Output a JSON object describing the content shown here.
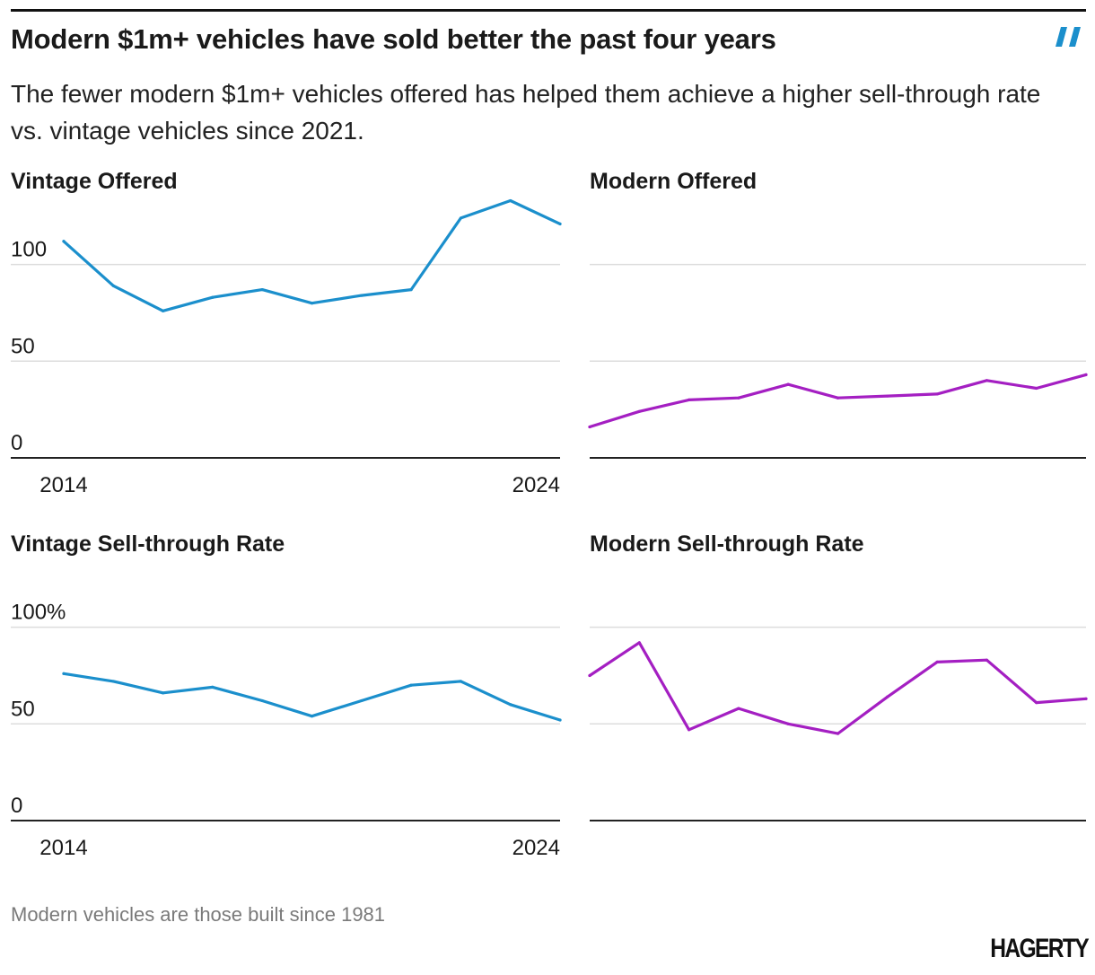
{
  "header": {
    "title": "Modern $1m+ vehicles have sold better the past four years",
    "subtitle": "The fewer modern $1m+ vehicles offered has helped them achieve a higher sell-through rate vs. vintage vehicles since 2021."
  },
  "colors": {
    "vintage": "#1b8fcc",
    "modern": "#a41fc2",
    "grid": "#dddddd",
    "axis": "#222222",
    "logo_mark": "#1b8fcc"
  },
  "logo_mark_icon": "brand-slash-icon",
  "chart_data": [
    {
      "type": "line",
      "title": "Vintage Offered",
      "color_key": "vintage",
      "x": [
        2014,
        2015,
        2016,
        2017,
        2018,
        2019,
        2020,
        2021,
        2022,
        2023,
        2024
      ],
      "values": [
        112,
        89,
        76,
        83,
        87,
        80,
        84,
        87,
        124,
        133,
        121
      ],
      "ylim": [
        0,
        130
      ],
      "yticks": [
        0,
        50,
        100
      ],
      "ytick_labels": [
        "0",
        "50",
        "100"
      ],
      "xtick_labels": [
        "2014",
        "2024"
      ],
      "show_axis_labels": true
    },
    {
      "type": "line",
      "title": "Modern Offered",
      "color_key": "modern",
      "x": [
        2014,
        2015,
        2016,
        2017,
        2018,
        2019,
        2020,
        2021,
        2022,
        2023,
        2024
      ],
      "values": [
        16,
        24,
        30,
        31,
        38,
        31,
        32,
        33,
        40,
        36,
        43
      ],
      "ylim": [
        0,
        130
      ],
      "yticks": [
        0,
        50,
        100
      ],
      "ytick_labels": [],
      "xtick_labels": [],
      "show_axis_labels": false
    },
    {
      "type": "line",
      "title": "Vintage Sell-through Rate",
      "color_key": "vintage",
      "x": [
        2014,
        2015,
        2016,
        2017,
        2018,
        2019,
        2020,
        2021,
        2022,
        2023,
        2024
      ],
      "values": [
        76,
        72,
        66,
        69,
        62,
        54,
        62,
        70,
        72,
        60,
        52
      ],
      "ylim": [
        0,
        130
      ],
      "yticks": [
        0,
        50,
        100
      ],
      "ytick_labels": [
        "0",
        "50",
        "100%"
      ],
      "xtick_labels": [
        "2014",
        "2024"
      ],
      "show_axis_labels": true
    },
    {
      "type": "line",
      "title": "Modern Sell-through Rate",
      "color_key": "modern",
      "x": [
        2014,
        2015,
        2016,
        2017,
        2018,
        2019,
        2020,
        2021,
        2022,
        2023,
        2024
      ],
      "values": [
        75,
        92,
        47,
        58,
        50,
        45,
        64,
        82,
        83,
        61,
        63
      ],
      "ylim": [
        0,
        130
      ],
      "yticks": [
        0,
        50,
        100
      ],
      "ytick_labels": [],
      "xtick_labels": [],
      "show_axis_labels": false
    }
  ],
  "footer": {
    "note": "Modern vehicles are those built since 1981",
    "brand": "HAGERTY"
  }
}
